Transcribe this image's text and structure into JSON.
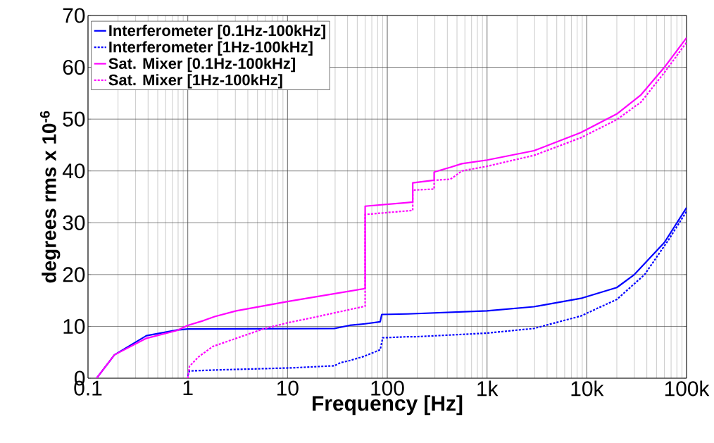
{
  "chart_data": {
    "type": "line",
    "xlabel": "Frequency [Hz]",
    "ylabel": "degrees rms x 10$^{-6}$",
    "log": "x",
    "xlim": [
      0.1,
      100000
    ],
    "ylim": [
      0,
      70
    ],
    "xticks": [
      0.1,
      1,
      10,
      100,
      {
        "value": 1000,
        "label": "1k"
      },
      {
        "value": 10000,
        "label": "10k"
      },
      {
        "value": 100000,
        "label": "100k"
      }
    ],
    "yticks": [
      0,
      10,
      20,
      30,
      40,
      50,
      60,
      70
    ],
    "grid": true,
    "legend": "top left",
    "marker": "none",
    "series": [
      {
        "name": "Interferometer [0.1Hz-100kHz]",
        "color": "#0000ff",
        "line_style": "solid",
        "x": [
          0.122,
          0.184,
          0.385,
          0.78,
          1,
          29.5,
          42,
          60,
          85,
          88,
          160,
          1000,
          2950,
          8700,
          20000,
          30000,
          60000,
          100000
        ],
        "values": [
          0,
          4.5,
          8.2,
          9.3,
          9.5,
          9.6,
          10.2,
          10.5,
          10.9,
          12.3,
          12.4,
          13.0,
          13.8,
          15.4,
          17.5,
          20,
          26.2,
          32.9
        ]
      },
      {
        "name": "Interferometer [1Hz-100kHz]",
        "color": "#0000ff",
        "line_style": "dotted",
        "x": [
          1,
          1.04,
          2,
          11.3,
          29.5,
          34,
          42,
          58,
          85,
          90,
          160,
          190,
          1000,
          2950,
          8700,
          20000,
          38000,
          66000,
          100000
        ],
        "values": [
          0.5,
          1.4,
          1.6,
          2.0,
          2.4,
          3.0,
          3.4,
          4.2,
          5.5,
          7.8,
          8.0,
          8.0,
          8.7,
          9.6,
          12.0,
          15.2,
          20,
          26.7,
          32.2
        ]
      },
      {
        "name": "Sat. Mixer [0.1Hz-100kHz]",
        "color": "#ff00ff",
        "line_style": "solid",
        "x": [
          0.122,
          0.184,
          0.385,
          0.78,
          1,
          1.43,
          1.86,
          3.06,
          10,
          60,
          60,
          160,
          180,
          180,
          295,
          295,
          430,
          560,
          1000,
          2950,
          8700,
          20000,
          35000,
          60000,
          100000
        ],
        "values": [
          0,
          4.5,
          7.7,
          9.2,
          10.2,
          11.1,
          11.9,
          13.0,
          14.8,
          17.3,
          33.2,
          33.9,
          34.0,
          37.7,
          38.2,
          39.8,
          40.7,
          41.4,
          42.1,
          43.9,
          47.4,
          51.0,
          54.7,
          60,
          65.7
        ]
      },
      {
        "name": "Sat. Mixer [1Hz-100kHz]",
        "color": "#ff00ff",
        "line_style": "dotted",
        "x": [
          1,
          1.04,
          1.28,
          1.77,
          3.06,
          5.7,
          10,
          19,
          60,
          60,
          160,
          180,
          180,
          295,
          295,
          430,
          560,
          1000,
          2950,
          8700,
          20000,
          35000,
          60000,
          100000
        ],
        "values": [
          0,
          2.3,
          4.1,
          6.1,
          7.7,
          9.5,
          10.7,
          11.8,
          13.9,
          31.6,
          32.3,
          32.4,
          36.3,
          36.5,
          38.2,
          38.4,
          40,
          40.9,
          43,
          46.4,
          49.9,
          53.3,
          59,
          64.8
        ]
      }
    ]
  }
}
